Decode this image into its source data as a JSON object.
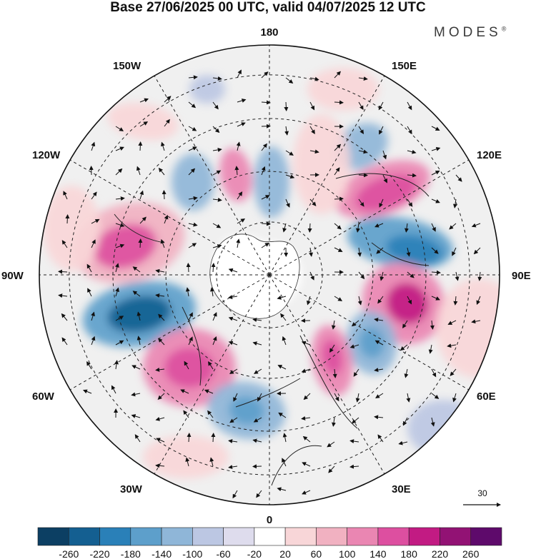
{
  "title": "Base 27/06/2025 00 UTC, valid 04/07/2025 12 UTC",
  "brand": "MODES",
  "brand_mark": "®",
  "meridian_labels": {
    "top": "180",
    "bottom": "0",
    "left": "90W",
    "right": "90E",
    "upper_left_inner": "150W",
    "upper_left_outer": "120W",
    "upper_right_inner": "150E",
    "upper_right_outer": "120E",
    "lower_left_outer": "60W",
    "lower_left_inner": "30W",
    "lower_right_outer": "60E",
    "lower_right_inner": "30E"
  },
  "vector_reference": {
    "value": "30"
  },
  "colorbar": {
    "ticks": [
      "-260",
      "-220",
      "-180",
      "-140",
      "-100",
      "-60",
      "-20",
      "20",
      "60",
      "100",
      "140",
      "180",
      "220",
      "260"
    ],
    "colors": [
      "#0c3f63",
      "#145f91",
      "#2a80b8",
      "#5d9fcb",
      "#8fb6d8",
      "#bcc7e3",
      "#dedced",
      "#ffffff",
      "#f8d6d8",
      "#f1b1c1",
      "#ea86b2",
      "#dd4fa0",
      "#c21b83",
      "#921274",
      "#5e0a6b"
    ]
  },
  "colors": {
    "land_outline": "#222222",
    "grid": "#222222",
    "arrows": "#111111"
  }
}
